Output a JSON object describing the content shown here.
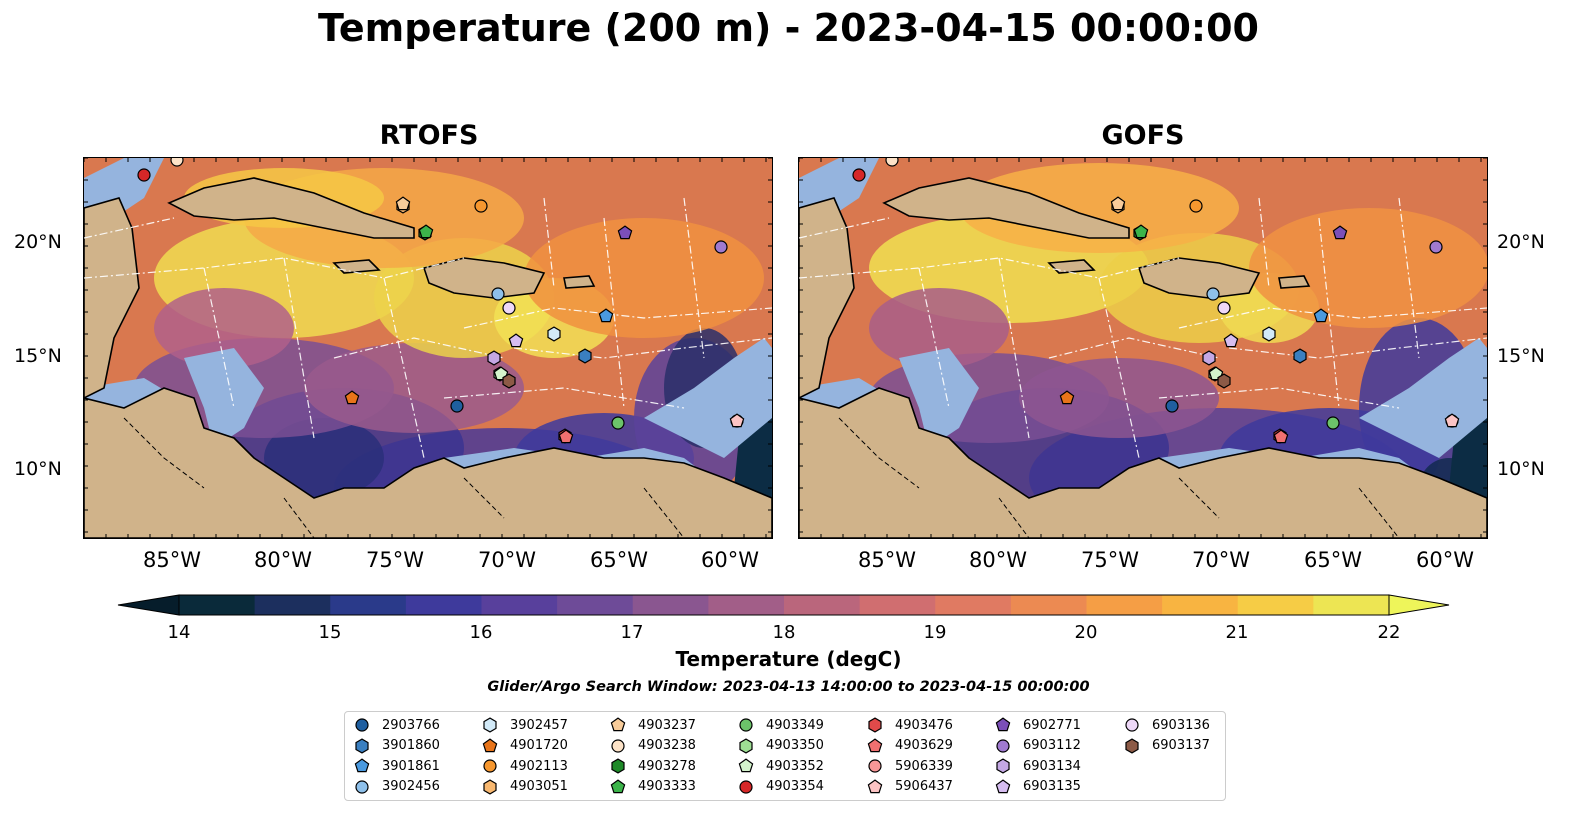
{
  "title": "Temperature (200 m) - 2023-04-15 00:00:00",
  "panels": [
    {
      "title": "RTOFS"
    },
    {
      "title": "GOFS"
    }
  ],
  "axes": {
    "lat_ticks": [
      "20°N",
      "15°N",
      "10°N"
    ],
    "lon_ticks": [
      "85°W",
      "80°W",
      "75°W",
      "70°W",
      "65°W",
      "60°W"
    ]
  },
  "colorbar": {
    "label": "Temperature (degC)",
    "ticks": [
      "14",
      "15",
      "16",
      "17",
      "18",
      "19",
      "20",
      "21",
      "22"
    ],
    "range": [
      14,
      22
    ],
    "colors": [
      "#0a2a3a",
      "#1c2f5e",
      "#2a3a8a",
      "#3e3a9c",
      "#58409c",
      "#6e4b98",
      "#8a5690",
      "#a25e88",
      "#ba667c",
      "#d06e70",
      "#e07a62",
      "#ec8a52",
      "#f59e45",
      "#f8b441",
      "#f6cc45",
      "#ede553"
    ]
  },
  "search_window": "Glider/Argo Search Window: 2023-04-13 14:00:00 to 2023-04-15 00:00:00",
  "legend": {
    "items": [
      {
        "label": "2903766",
        "shape": "circle",
        "color": "#1f5fa0"
      },
      {
        "label": "3901860",
        "shape": "hexagon",
        "color": "#3a7fc0"
      },
      {
        "label": "3901861",
        "shape": "pentagon",
        "color": "#4a9ae0"
      },
      {
        "label": "3902456",
        "shape": "circle",
        "color": "#8ec0ea"
      },
      {
        "label": "3902457",
        "shape": "hexagon",
        "color": "#d2eaf8"
      },
      {
        "label": "4901720",
        "shape": "pentagon",
        "color": "#e8741a"
      },
      {
        "label": "4902113",
        "shape": "circle",
        "color": "#f6972f"
      },
      {
        "label": "4903051",
        "shape": "hexagon",
        "color": "#f8b870"
      },
      {
        "label": "4903237",
        "shape": "pentagon",
        "color": "#f8cc9a"
      },
      {
        "label": "4903238",
        "shape": "circle",
        "color": "#fde3c8"
      },
      {
        "label": "4903278",
        "shape": "hexagon",
        "color": "#1e8a28"
      },
      {
        "label": "4903333",
        "shape": "pentagon",
        "color": "#3cb44a"
      },
      {
        "label": "4903349",
        "shape": "circle",
        "color": "#6cc36a"
      },
      {
        "label": "4903350",
        "shape": "hexagon",
        "color": "#9ede94"
      },
      {
        "label": "4903352",
        "shape": "pentagon",
        "color": "#d4f4cc"
      },
      {
        "label": "4903354",
        "shape": "circle",
        "color": "#d62728"
      },
      {
        "label": "4903476",
        "shape": "hexagon",
        "color": "#e04a4a"
      },
      {
        "label": "4903629",
        "shape": "pentagon",
        "color": "#f07070"
      },
      {
        "label": "5906339",
        "shape": "circle",
        "color": "#f89898"
      },
      {
        "label": "5906437",
        "shape": "pentagon",
        "color": "#fcc4c4"
      },
      {
        "label": "6902771",
        "shape": "pentagon",
        "color": "#7b4fb8"
      },
      {
        "label": "6903112",
        "shape": "circle",
        "color": "#a07ad0"
      },
      {
        "label": "6903134",
        "shape": "hexagon",
        "color": "#c4a8e4"
      },
      {
        "label": "6903135",
        "shape": "pentagon",
        "color": "#d6bdf0"
      },
      {
        "label": "6903136",
        "shape": "circle",
        "color": "#eed8f8"
      },
      {
        "label": "6903137",
        "shape": "hexagon",
        "color": "#8c5a46"
      }
    ]
  }
}
